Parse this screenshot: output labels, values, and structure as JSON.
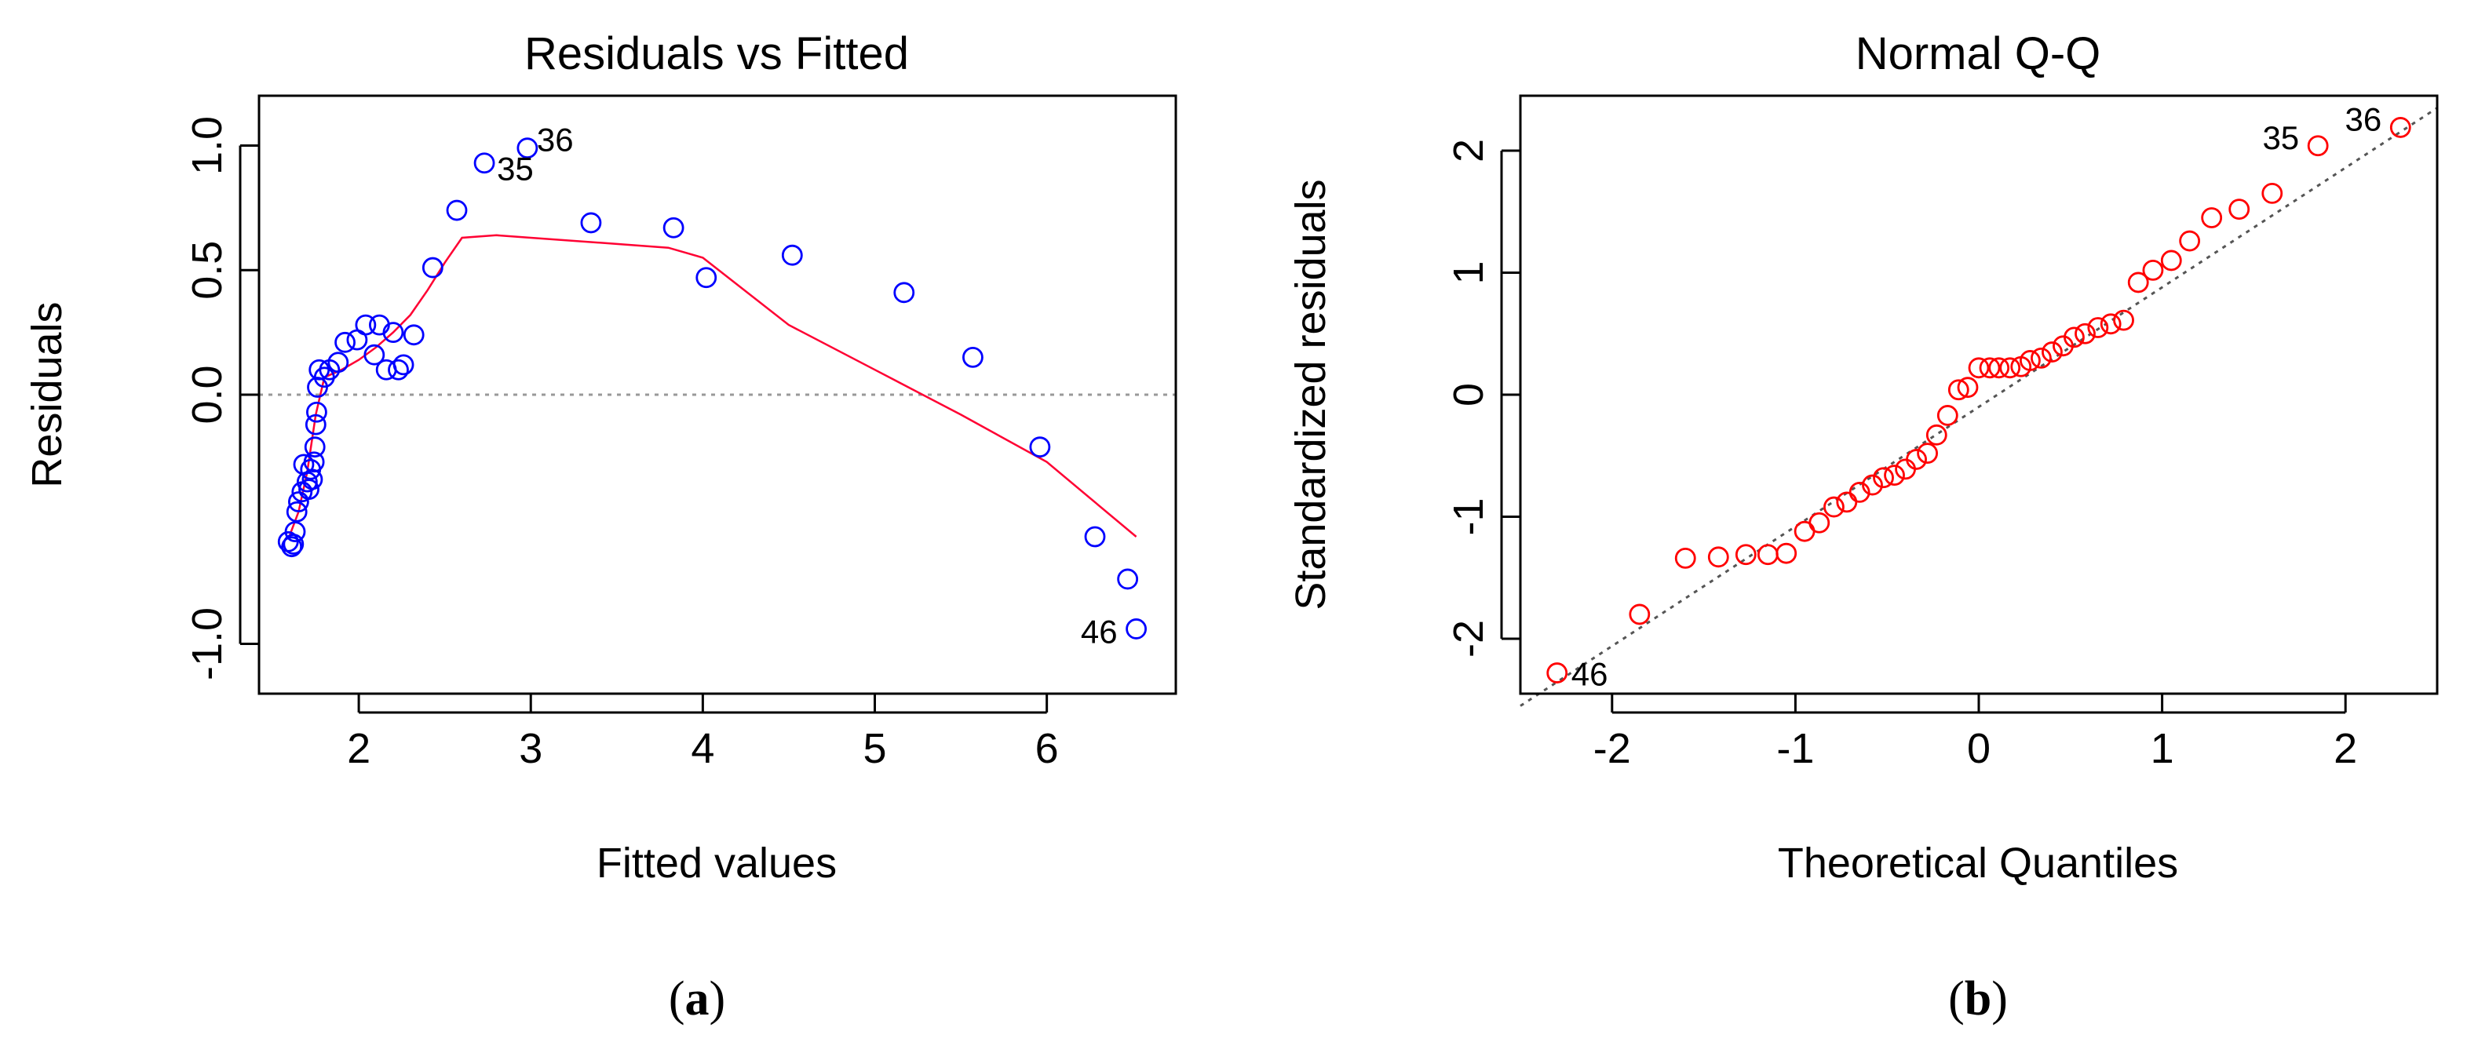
{
  "chart_data": [
    {
      "type": "scatter",
      "panel": "a",
      "caption": {
        "open": "(",
        "letter": "a",
        "close": ")"
      },
      "title": "Residuals vs Fitted",
      "xlabel": "Fitted values",
      "ylabel": "Residuals",
      "xlim": [
        1.42,
        6.75
      ],
      "ylim": [
        -1.2,
        1.2
      ],
      "xticks": [
        2,
        3,
        4,
        5,
        6
      ],
      "xtick_labels": [
        "2",
        "3",
        "4",
        "5",
        "6"
      ],
      "yticks": [
        -1.0,
        0.0,
        0.5,
        1.0
      ],
      "ytick_labels": [
        "-1.0",
        "0.0",
        "0.5",
        "1.0"
      ],
      "reference_line": {
        "y": 0,
        "style": "dotted",
        "color": "#999999"
      },
      "point_color": "#0000ff",
      "smooth_color": "#ff0033",
      "points": [
        {
          "x": 1.59,
          "y": -0.59
        },
        {
          "x": 1.61,
          "y": -0.61
        },
        {
          "x": 1.62,
          "y": -0.6
        },
        {
          "x": 1.63,
          "y": -0.55
        },
        {
          "x": 1.64,
          "y": -0.47
        },
        {
          "x": 1.65,
          "y": -0.43
        },
        {
          "x": 1.67,
          "y": -0.39
        },
        {
          "x": 1.68,
          "y": -0.28
        },
        {
          "x": 1.7,
          "y": -0.35
        },
        {
          "x": 1.71,
          "y": -0.38
        },
        {
          "x": 1.72,
          "y": -0.3
        },
        {
          "x": 1.73,
          "y": -0.34
        },
        {
          "x": 1.74,
          "y": -0.27
        },
        {
          "x": 1.745,
          "y": -0.21
        },
        {
          "x": 1.75,
          "y": -0.12
        },
        {
          "x": 1.755,
          "y": -0.07
        },
        {
          "x": 1.76,
          "y": 0.03
        },
        {
          "x": 1.77,
          "y": 0.1
        },
        {
          "x": 1.8,
          "y": 0.07
        },
        {
          "x": 1.83,
          "y": 0.1
        },
        {
          "x": 1.88,
          "y": 0.13
        },
        {
          "x": 1.92,
          "y": 0.21
        },
        {
          "x": 1.99,
          "y": 0.22
        },
        {
          "x": 2.04,
          "y": 0.28
        },
        {
          "x": 2.09,
          "y": 0.16
        },
        {
          "x": 2.12,
          "y": 0.28
        },
        {
          "x": 2.16,
          "y": 0.1
        },
        {
          "x": 2.2,
          "y": 0.25
        },
        {
          "x": 2.23,
          "y": 0.1
        },
        {
          "x": 2.26,
          "y": 0.12
        },
        {
          "x": 2.32,
          "y": 0.24
        },
        {
          "x": 2.43,
          "y": 0.51
        },
        {
          "x": 2.57,
          "y": 0.74
        },
        {
          "x": 2.73,
          "y": 0.93,
          "label": "35"
        },
        {
          "x": 2.98,
          "y": 0.99,
          "label": "36"
        },
        {
          "x": 3.35,
          "y": 0.69
        },
        {
          "x": 3.83,
          "y": 0.67
        },
        {
          "x": 4.02,
          "y": 0.47
        },
        {
          "x": 4.52,
          "y": 0.56
        },
        {
          "x": 5.17,
          "y": 0.41
        },
        {
          "x": 5.57,
          "y": 0.15
        },
        {
          "x": 5.96,
          "y": -0.21
        },
        {
          "x": 6.28,
          "y": -0.57
        },
        {
          "x": 6.47,
          "y": -0.74
        },
        {
          "x": 6.52,
          "y": -0.94,
          "label": "46"
        }
      ],
      "smooth": {
        "x": [
          1.59,
          1.65,
          1.7,
          1.75,
          1.8,
          1.9,
          2.0,
          2.1,
          2.2,
          2.3,
          2.4,
          2.5,
          2.6,
          2.8,
          3.0,
          3.4,
          3.8,
          4.0,
          4.5,
          5.0,
          5.5,
          6.0,
          6.52
        ],
        "y": [
          -0.58,
          -0.47,
          -0.31,
          -0.08,
          0.07,
          0.1,
          0.14,
          0.19,
          0.25,
          0.32,
          0.42,
          0.53,
          0.63,
          0.64,
          0.63,
          0.61,
          0.59,
          0.55,
          0.28,
          0.1,
          -0.08,
          -0.27,
          -0.57
        ]
      }
    },
    {
      "type": "scatter",
      "panel": "b",
      "caption": {
        "open": "(",
        "letter": "b",
        "close": ")"
      },
      "title": "Normal Q-Q",
      "xlabel": "Theoretical Quantiles",
      "ylabel": "Standardized residuals",
      "xlim": [
        -2.5,
        2.5
      ],
      "ylim": [
        -2.45,
        2.45
      ],
      "xticks": [
        -2,
        -1,
        0,
        1,
        2
      ],
      "xtick_labels": [
        "-2",
        "-1",
        "0",
        "1",
        "2"
      ],
      "yticks": [
        -2,
        -1,
        0,
        1,
        2
      ],
      "ytick_labels": [
        "-2",
        "-1",
        "0",
        "1",
        "2"
      ],
      "reference_line": {
        "x1": -2.5,
        "y1": -2.55,
        "x2": 2.5,
        "y2": 2.35,
        "style": "dotted",
        "color": "#555555"
      },
      "point_color": "#ff0000",
      "points": [
        {
          "x": -2.3,
          "y": -2.28,
          "label": "46"
        },
        {
          "x": -1.85,
          "y": -1.8
        },
        {
          "x": -1.6,
          "y": -1.34
        },
        {
          "x": -1.42,
          "y": -1.33
        },
        {
          "x": -1.27,
          "y": -1.31
        },
        {
          "x": -1.15,
          "y": -1.31
        },
        {
          "x": -1.05,
          "y": -1.3
        },
        {
          "x": -0.95,
          "y": -1.12
        },
        {
          "x": -0.87,
          "y": -1.05
        },
        {
          "x": -0.79,
          "y": -0.92
        },
        {
          "x": -0.72,
          "y": -0.88
        },
        {
          "x": -0.65,
          "y": -0.8
        },
        {
          "x": -0.58,
          "y": -0.74
        },
        {
          "x": -0.52,
          "y": -0.68
        },
        {
          "x": -0.46,
          "y": -0.66
        },
        {
          "x": -0.4,
          "y": -0.61
        },
        {
          "x": -0.34,
          "y": -0.53
        },
        {
          "x": -0.28,
          "y": -0.48
        },
        {
          "x": -0.23,
          "y": -0.33
        },
        {
          "x": -0.17,
          "y": -0.17
        },
        {
          "x": -0.11,
          "y": 0.04
        },
        {
          "x": -0.06,
          "y": 0.06
        },
        {
          "x": 0.0,
          "y": 0.22
        },
        {
          "x": 0.06,
          "y": 0.22
        },
        {
          "x": 0.11,
          "y": 0.22
        },
        {
          "x": 0.17,
          "y": 0.22
        },
        {
          "x": 0.23,
          "y": 0.23
        },
        {
          "x": 0.28,
          "y": 0.28
        },
        {
          "x": 0.34,
          "y": 0.3
        },
        {
          "x": 0.4,
          "y": 0.35
        },
        {
          "x": 0.46,
          "y": 0.4
        },
        {
          "x": 0.52,
          "y": 0.47
        },
        {
          "x": 0.58,
          "y": 0.5
        },
        {
          "x": 0.65,
          "y": 0.55
        },
        {
          "x": 0.72,
          "y": 0.58
        },
        {
          "x": 0.79,
          "y": 0.61
        },
        {
          "x": 0.87,
          "y": 0.92
        },
        {
          "x": 0.95,
          "y": 1.02
        },
        {
          "x": 1.05,
          "y": 1.1
        },
        {
          "x": 1.15,
          "y": 1.26
        },
        {
          "x": 1.27,
          "y": 1.45
        },
        {
          "x": 1.42,
          "y": 1.52
        },
        {
          "x": 1.6,
          "y": 1.65
        },
        {
          "x": 1.85,
          "y": 2.04,
          "label": "35"
        },
        {
          "x": 2.3,
          "y": 2.19,
          "label": "36"
        }
      ]
    }
  ]
}
